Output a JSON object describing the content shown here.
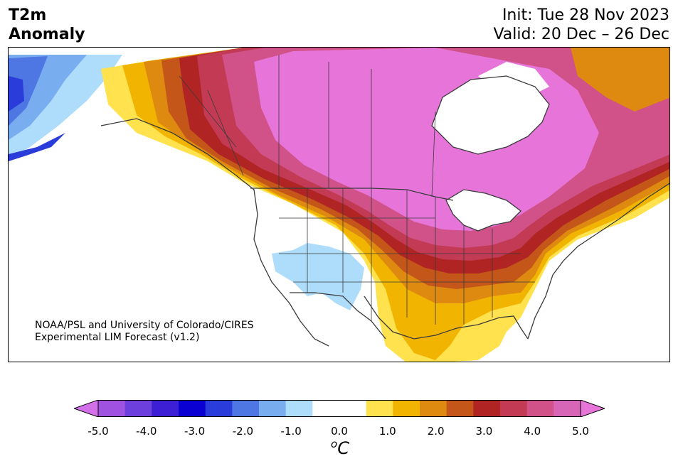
{
  "title": {
    "line1": "T2m",
    "line2": "Anomaly"
  },
  "info": {
    "init": "Init: Tue 28 Nov 2023",
    "valid": "Valid: 20 Dec – 26 Dec"
  },
  "credit": {
    "line1": "NOAA/PSL and University of Colorado/CIRES",
    "line2": "Experimental LIM Forecast (v1.2)"
  },
  "colorbar": {
    "min": -5.0,
    "max": 5.0,
    "ticks": [
      "-5.0",
      "-4.0",
      "-3.0",
      "-2.0",
      "-1.0",
      "0.0",
      "1.0",
      "2.0",
      "3.0",
      "4.0",
      "5.0"
    ],
    "unit_base": "C",
    "unit_sup": "o",
    "neg_colors": [
      "#d36fe8",
      "#9f52e0",
      "#6d3fdc",
      "#3d1fd6",
      "#0a00d1",
      "#2a3ddb",
      "#4f77e4",
      "#78aef0",
      "#aedcfb"
    ],
    "zero_color": "#ffffff",
    "pos_colors": [
      "#ffe24e",
      "#f1b400",
      "#de8a10",
      "#c4561a",
      "#b02424",
      "#c33a55",
      "#d05288",
      "#d866b8",
      "#e775d9"
    ],
    "over_color": "#e775d9"
  },
  "map_colors": {
    "cold_deep": "#2a3ddb",
    "cold_mid": "#4f77e4",
    "cold_light": "#78aef0",
    "cold_pale": "#aedcfb",
    "warm1": "#ffe24e",
    "warm2": "#f1b400",
    "warm3": "#de8a10",
    "warm4": "#c4561a",
    "warm5": "#b02424",
    "warm6": "#c33a55",
    "warm7": "#d05288",
    "warm8": "#e775d9",
    "border": "#3a3a3a"
  }
}
